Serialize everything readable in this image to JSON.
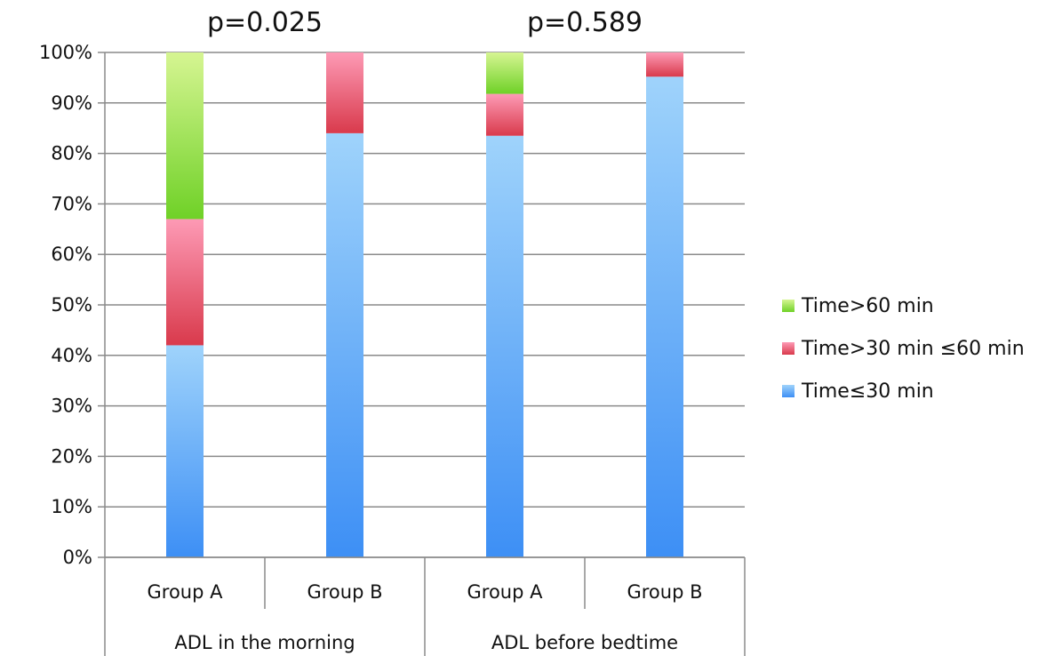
{
  "chart_data": {
    "type": "bar",
    "stacked": true,
    "yticks": [
      "0%",
      "10%",
      "20%",
      "30%",
      "40%",
      "50%",
      "60%",
      "70%",
      "80%",
      "90%",
      "100%"
    ],
    "ylim": [
      0,
      100
    ],
    "grid": true,
    "legend_position": "right",
    "categories": [
      "Group A",
      "Group B",
      "Group A",
      "Group B"
    ],
    "groups": [
      {
        "label": "ADL in the morning",
        "p_value": "p=0.025"
      },
      {
        "label": "ADL before bedtime",
        "p_value": "p=0.589"
      }
    ],
    "series": [
      {
        "name": "Time≤30 min",
        "values": [
          42,
          84,
          83.5,
          95.2
        ],
        "color": "#5aa8f5"
      },
      {
        "name": "Time>30 min ≤60 min",
        "values": [
          25,
          16,
          8.3,
          4.8
        ],
        "color": "#f2707f"
      },
      {
        "name": "Time>60 min",
        "values": [
          33,
          0,
          8.2,
          0
        ],
        "color": "#9ee055"
      }
    ]
  }
}
